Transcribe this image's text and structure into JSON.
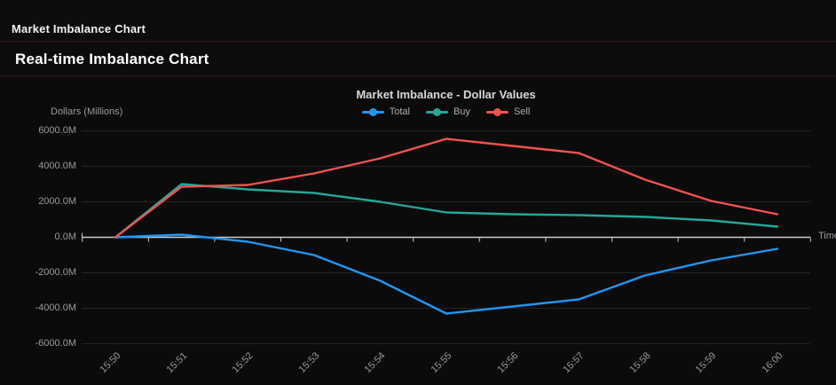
{
  "header": {
    "title": "Market Imbalance Chart"
  },
  "section": {
    "title": "Real-time Imbalance Chart"
  },
  "chart_data": {
    "type": "line",
    "title": "Market Imbalance - Dollar Values",
    "xlabel": "Time",
    "ylabel": "Dollars (Millions)",
    "categories": [
      "15:50",
      "15:51",
      "15:52",
      "15:53",
      "15:54",
      "15:55",
      "15:56",
      "15:57",
      "15:58",
      "15:59",
      "16:00"
    ],
    "series": [
      {
        "name": "Total",
        "color": "#2196f3",
        "values": [
          0,
          150,
          -250,
          -1000,
          -2450,
          -4300,
          -3900,
          -3500,
          -2150,
          -1300,
          -650
        ]
      },
      {
        "name": "Buy",
        "color": "#26a69a",
        "values": [
          0,
          3000,
          2700,
          2500,
          2000,
          1400,
          1300,
          1250,
          1150,
          950,
          600
        ]
      },
      {
        "name": "Sell",
        "color": "#ef5350",
        "values": [
          0,
          2850,
          2950,
          3600,
          4450,
          5550,
          5150,
          4750,
          3250,
          2050,
          1300
        ]
      }
    ],
    "y_ticks": [
      {
        "label": "6000.0M",
        "value": 6000
      },
      {
        "label": "4000.0M",
        "value": 4000
      },
      {
        "label": "2000.0M",
        "value": 2000
      },
      {
        "label": "0.0M",
        "value": 0
      },
      {
        "label": "-2000.0M",
        "value": -2000
      },
      {
        "label": "-4000.0M",
        "value": -4000
      },
      {
        "label": "-6000.0M",
        "value": -6000
      }
    ],
    "ylim": [
      -6000,
      6000
    ],
    "legend_position": "top",
    "grid": true,
    "colors": {
      "background": "#0b0b0b",
      "gridline": "#242424",
      "axis_line": "#c9ccd1",
      "tick_text": "#969ba1"
    }
  }
}
